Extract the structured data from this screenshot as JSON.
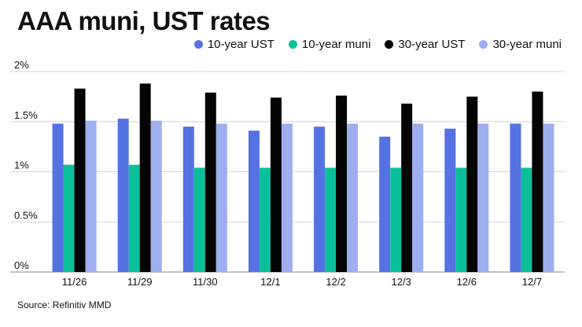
{
  "title": "AAA muni, UST rates",
  "source": "Source: Refinitiv MMD",
  "chart_data": {
    "type": "bar",
    "categories": [
      "11/26",
      "11/29",
      "11/30",
      "12/1",
      "12/2",
      "12/3",
      "12/6",
      "12/7"
    ],
    "series": [
      {
        "name": "10-year UST",
        "color": "#5472e2",
        "values": [
          1.48,
          1.53,
          1.45,
          1.41,
          1.45,
          1.35,
          1.43,
          1.48
        ]
      },
      {
        "name": "10-year muni",
        "color": "#0cbf9b",
        "values": [
          1.07,
          1.07,
          1.04,
          1.04,
          1.04,
          1.04,
          1.04,
          1.04
        ]
      },
      {
        "name": "30-year UST",
        "color": "#050505",
        "values": [
          1.83,
          1.88,
          1.79,
          1.74,
          1.76,
          1.68,
          1.75,
          1.8
        ]
      },
      {
        "name": "30-year muni",
        "color": "#9faeef",
        "values": [
          1.51,
          1.51,
          1.48,
          1.48,
          1.48,
          1.48,
          1.48,
          1.48
        ]
      }
    ],
    "yticks": [
      "0%",
      "0.5%",
      "1%",
      "1.5%",
      "2%"
    ],
    "ylim": [
      0,
      2
    ],
    "grid": true,
    "legend": "top-right"
  }
}
